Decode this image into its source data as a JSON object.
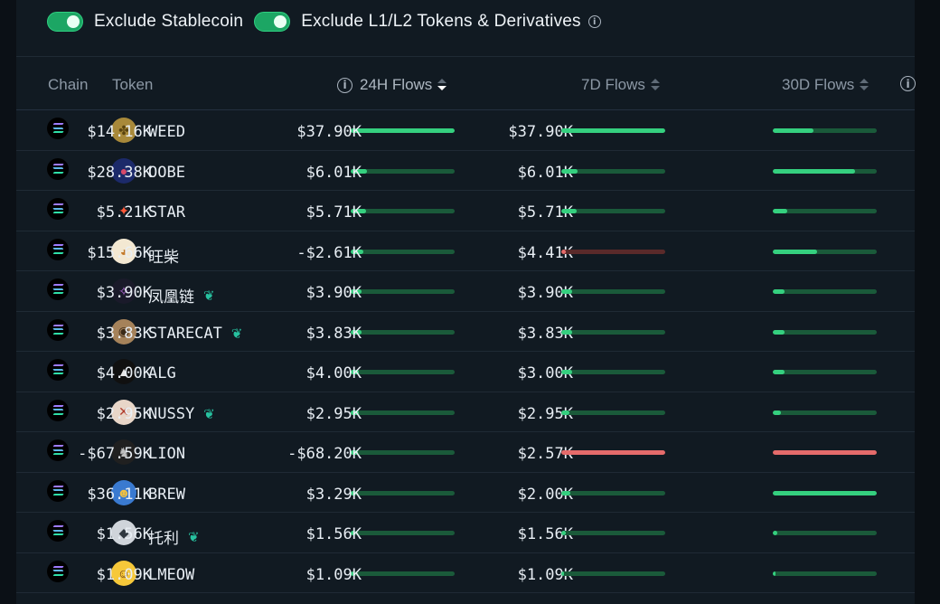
{
  "filters": [
    {
      "label": "Exclude Stablecoin",
      "on": true
    },
    {
      "label": "Exclude L1/L2 Tokens & Derivatives",
      "on": true,
      "has_info": true
    }
  ],
  "columns": {
    "chain": "Chain",
    "token": "Token",
    "flows_24h": "24H Flows",
    "flows_7d": "7D Flows",
    "flows_30d": "30D Flows"
  },
  "sort": {
    "column": "24H Flows",
    "direction": "descending"
  },
  "colors": {
    "positive_bar": "#35d07f",
    "negative_bar": "#e56b6b",
    "toggle_on": "#1ca664"
  },
  "rows": [
    {
      "chain": "solana-icon",
      "token": "WEED",
      "verified": false,
      "logo": "weed-logo-icon",
      "f24": "$37.90K",
      "f7": "$37.90K",
      "f30": "$14.16K",
      "b24": 1.0,
      "b7": 1.0,
      "b30": 0.39,
      "n24": false,
      "n7": false,
      "n30": false
    },
    {
      "chain": "solana-icon",
      "token": "OOBE",
      "verified": false,
      "logo": "oobe-logo-icon",
      "f24": "$6.01K",
      "f7": "$6.01K",
      "f30": "$28.38K",
      "b24": 0.16,
      "b7": 0.16,
      "b30": 0.79,
      "n24": false,
      "n7": false,
      "n30": false
    },
    {
      "chain": "solana-icon",
      "token": "STAR",
      "verified": false,
      "logo": "star-logo-icon",
      "f24": "$5.71K",
      "f7": "$5.71K",
      "f30": "$5.21K",
      "b24": 0.15,
      "b7": 0.15,
      "b30": 0.14,
      "n24": false,
      "n7": false,
      "n30": false
    },
    {
      "chain": "solana-icon",
      "token": "旺柴",
      "verified": false,
      "logo": "dog-logo-icon",
      "f24": "$4.41K",
      "f7": "-$2.61K",
      "f30": "$15.66K",
      "b24": 0.12,
      "b7": 0.04,
      "b30": 0.43,
      "n24": false,
      "n7": true,
      "n30": false
    },
    {
      "chain": "solana-icon",
      "token": "凤凰链",
      "verified": true,
      "logo": "phoenix-logo-icon",
      "f24": "$3.90K",
      "f7": "$3.90K",
      "f30": "$3.90K",
      "b24": 0.1,
      "b7": 0.1,
      "b30": 0.11,
      "n24": false,
      "n7": false,
      "n30": false
    },
    {
      "chain": "solana-icon",
      "token": "STARECAT",
      "verified": true,
      "logo": "cat-logo-icon",
      "f24": "$3.83K",
      "f7": "$3.83K",
      "f30": "$3.83K",
      "b24": 0.1,
      "b7": 0.1,
      "b30": 0.11,
      "n24": false,
      "n7": false,
      "n30": false
    },
    {
      "chain": "solana-icon",
      "token": "ALG",
      "verified": false,
      "logo": "alg-logo-icon",
      "f24": "$3.00K",
      "f7": "$4.00K",
      "f30": "$4.00K",
      "b24": 0.08,
      "b7": 0.1,
      "b30": 0.11,
      "n24": false,
      "n7": false,
      "n30": false
    },
    {
      "chain": "solana-icon",
      "token": "NUSSY",
      "verified": true,
      "logo": "nussy-logo-icon",
      "f24": "$2.95K",
      "f7": "$2.95K",
      "f30": "$2.95K",
      "b24": 0.08,
      "b7": 0.08,
      "b30": 0.08,
      "n24": false,
      "n7": false,
      "n30": false
    },
    {
      "chain": "solana-icon",
      "token": "LION",
      "verified": false,
      "logo": "lion-logo-icon",
      "f24": "$2.57K",
      "f7": "-$68.20K",
      "f30": "-$67.59K",
      "b24": 0.07,
      "b7": 1.0,
      "b30": 1.0,
      "n24": false,
      "n7": true,
      "n30": true
    },
    {
      "chain": "solana-icon",
      "token": "BREW",
      "verified": false,
      "logo": "brew-logo-icon",
      "f24": "$2.00K",
      "f7": "$3.29K",
      "f30": "$36.11K",
      "b24": 0.05,
      "b7": 0.09,
      "b30": 1.0,
      "n24": false,
      "n7": false,
      "n30": false
    },
    {
      "chain": "solana-icon",
      "token": "托利",
      "verified": true,
      "logo": "diamond-logo-icon",
      "f24": "$1.56K",
      "f7": "$1.56K",
      "f30": "$1.56K",
      "b24": 0.04,
      "b7": 0.04,
      "b30": 0.04,
      "n24": false,
      "n7": false,
      "n30": false
    },
    {
      "chain": "solana-icon",
      "token": "LMEOW",
      "verified": false,
      "logo": "cat-emoji-logo-icon",
      "f24": "$1.09K",
      "f7": "$1.09K",
      "f30": "$1.09K",
      "b24": 0.03,
      "b7": 0.03,
      "b30": 0.03,
      "n24": false,
      "n7": false,
      "n30": false
    }
  ]
}
